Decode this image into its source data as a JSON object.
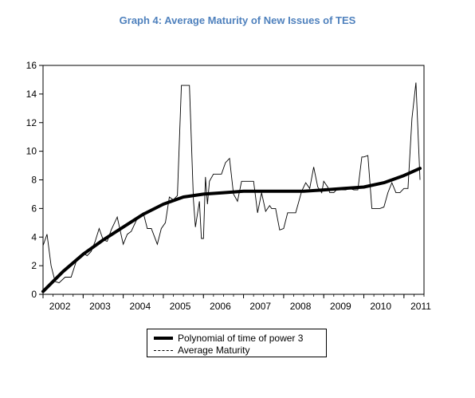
{
  "title": "Graph 4: Average Maturity of New Issues of TES",
  "chart_data": {
    "type": "line",
    "title": "Graph 4: Average Maturity of New Issues of TES",
    "xlabel": "",
    "ylabel": "",
    "xlim": [
      2002.0,
      2011.5
    ],
    "ylim": [
      0,
      16
    ],
    "y_ticks": [
      0,
      2,
      4,
      6,
      8,
      10,
      12,
      14,
      16
    ],
    "x_ticks": [
      "2002",
      "2003",
      "2004",
      "2005",
      "2006",
      "2007",
      "2008",
      "2009",
      "2010",
      "2011"
    ],
    "grid": false,
    "legend_position": "bottom",
    "series": [
      {
        "name": "Polynomial of time of power 3",
        "style": "solid-thick",
        "x": [
          2002.0,
          2002.5,
          2003.0,
          2003.5,
          2004.0,
          2004.5,
          2005.0,
          2005.5,
          2006.0,
          2006.5,
          2007.0,
          2007.5,
          2008.0,
          2008.5,
          2009.0,
          2009.5,
          2010.0,
          2010.5,
          2011.0,
          2011.4
        ],
        "y": [
          0.2,
          1.6,
          2.8,
          3.8,
          4.7,
          5.6,
          6.3,
          6.8,
          7.0,
          7.1,
          7.2,
          7.2,
          7.2,
          7.2,
          7.3,
          7.4,
          7.5,
          7.8,
          8.3,
          8.8
        ]
      },
      {
        "name": "Average Maturity",
        "style": "dashed-thin",
        "x": [
          2002.0,
          2002.1,
          2002.2,
          2002.3,
          2002.4,
          2002.55,
          2002.7,
          2002.85,
          2003.0,
          2003.1,
          2003.2,
          2003.3,
          2003.4,
          2003.5,
          2003.6,
          2003.7,
          2003.85,
          2004.0,
          2004.1,
          2004.2,
          2004.35,
          2004.5,
          2004.6,
          2004.7,
          2004.85,
          2004.95,
          2005.05,
          2005.15,
          2005.25,
          2005.35,
          2005.45,
          2005.5,
          2005.65,
          2005.75,
          2005.8,
          2005.9,
          2005.95,
          2006.0,
          2006.05,
          2006.1,
          2006.15,
          2006.25,
          2006.35,
          2006.45,
          2006.55,
          2006.65,
          2006.75,
          2006.85,
          2006.95,
          2007.05,
          2007.15,
          2007.25,
          2007.35,
          2007.45,
          2007.55,
          2007.65,
          2007.7,
          2007.8,
          2007.9,
          2008.0,
          2008.1,
          2008.2,
          2008.3,
          2008.45,
          2008.55,
          2008.65,
          2008.75,
          2008.85,
          2008.95,
          2009.0,
          2009.1,
          2009.15,
          2009.25,
          2009.35,
          2009.45,
          2009.55,
          2009.65,
          2009.75,
          2009.85,
          2009.95,
          2010.0,
          2010.1,
          2010.2,
          2010.3,
          2010.4,
          2010.5,
          2010.6,
          2010.7,
          2010.8,
          2010.9,
          2011.0,
          2011.1,
          2011.2,
          2011.3,
          2011.4
        ],
        "y": [
          3.4,
          4.2,
          2.0,
          0.9,
          0.8,
          1.2,
          1.2,
          2.5,
          2.9,
          2.7,
          3.0,
          3.7,
          4.6,
          3.8,
          3.7,
          4.5,
          5.4,
          3.5,
          4.2,
          4.4,
          5.3,
          5.7,
          4.6,
          4.6,
          3.5,
          4.6,
          5.0,
          6.8,
          6.6,
          6.9,
          14.6,
          14.6,
          14.6,
          6.6,
          4.7,
          6.5,
          3.9,
          3.9,
          8.2,
          6.3,
          7.9,
          8.4,
          8.4,
          8.4,
          9.2,
          9.5,
          7.0,
          6.5,
          7.9,
          7.9,
          7.9,
          7.9,
          5.7,
          7.1,
          5.8,
          6.2,
          6.0,
          6.0,
          4.5,
          4.6,
          5.7,
          5.7,
          5.7,
          7.2,
          7.8,
          7.4,
          8.9,
          7.5,
          7.1,
          7.9,
          7.5,
          7.1,
          7.1,
          7.4,
          7.3,
          7.3,
          7.4,
          7.3,
          7.3,
          9.6,
          9.6,
          9.7,
          6.0,
          6.0,
          6.0,
          6.1,
          7.1,
          7.8,
          7.1,
          7.1,
          7.4,
          7.4,
          12.3,
          14.8,
          8.0
        ]
      }
    ]
  },
  "legend": {
    "items": [
      {
        "label": "Polynomial of time of power 3"
      },
      {
        "label": "Average Maturity"
      }
    ]
  }
}
